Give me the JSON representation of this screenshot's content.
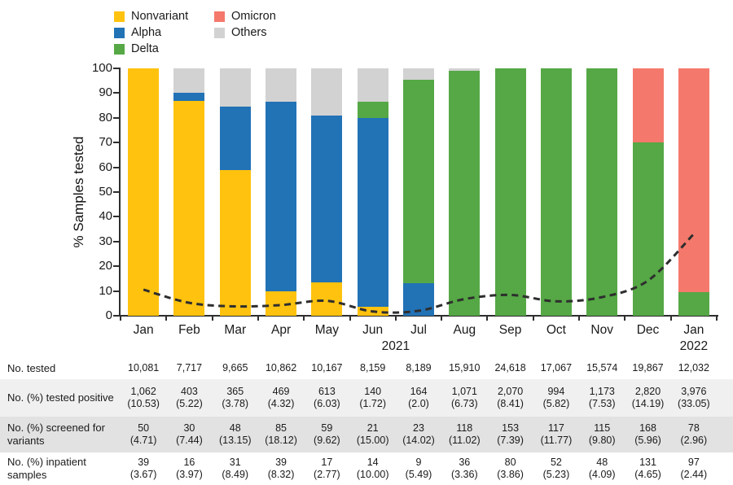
{
  "legend": {
    "items": [
      {
        "label": "Nonvariant",
        "color": "#FFC20E"
      },
      {
        "label": "Alpha",
        "color": "#2272B6"
      },
      {
        "label": "Delta",
        "color": "#55A845"
      },
      {
        "label": "Omicron",
        "color": "#F4796C"
      },
      {
        "label": "Others",
        "color": "#D2D2D2"
      }
    ]
  },
  "chart_data": {
    "type": "bar",
    "stacked": true,
    "title": "",
    "xlabel": "",
    "ylabel": "% Samples tested",
    "ylim": [
      0,
      100
    ],
    "yticks": [
      0,
      10,
      20,
      30,
      40,
      50,
      60,
      70,
      80,
      90,
      100
    ],
    "grid": false,
    "legend_position": "top-left",
    "categories": [
      "Jan",
      "Feb",
      "Mar",
      "Apr",
      "May",
      "Jun",
      "Jul",
      "Aug",
      "Sep",
      "Oct",
      "Nov",
      "Dec",
      "Jan"
    ],
    "year_labels": [
      {
        "text": "2021",
        "at": 5.5
      },
      {
        "text": "2022",
        "at": 12
      }
    ],
    "series": [
      {
        "name": "Nonvariant",
        "color": "#FFC20E",
        "values": [
          100,
          87,
          59,
          10,
          13.5,
          3.5,
          0,
          0,
          0,
          0,
          0,
          0,
          0
        ]
      },
      {
        "name": "Alpha",
        "color": "#2272B6",
        "values": [
          0,
          3,
          25.5,
          76.5,
          67.5,
          76.5,
          13,
          0,
          0,
          0,
          0,
          0,
          0
        ]
      },
      {
        "name": "Delta",
        "color": "#55A845",
        "values": [
          0,
          0,
          0,
          0,
          0,
          6.5,
          82.5,
          99,
          100,
          100,
          100,
          70,
          9.5
        ]
      },
      {
        "name": "Omicron",
        "color": "#F4796C",
        "values": [
          0,
          0,
          0,
          0,
          0,
          0,
          0,
          0,
          0,
          0,
          0,
          30,
          90.5
        ]
      },
      {
        "name": "Others",
        "color": "#D2D2D2",
        "values": [
          0,
          10,
          15.5,
          13.5,
          19,
          13.5,
          4.5,
          1,
          0,
          0,
          0,
          0,
          0
        ]
      }
    ],
    "line": {
      "name": "% tested positive",
      "style": "dashed",
      "color": "#2E2E2E",
      "values": [
        10.53,
        5.22,
        3.78,
        4.32,
        6.03,
        1.72,
        2.0,
        6.73,
        8.41,
        5.82,
        7.53,
        14.19,
        33.05
      ]
    }
  },
  "table": {
    "rows": [
      {
        "label": "No. tested",
        "cells": [
          [
            "10,081"
          ],
          [
            "7,717"
          ],
          [
            "9,665"
          ],
          [
            "10,862"
          ],
          [
            "10,167"
          ],
          [
            "8,159"
          ],
          [
            "8,189"
          ],
          [
            "15,910"
          ],
          [
            "24,618"
          ],
          [
            "17,067"
          ],
          [
            "15,574"
          ],
          [
            "19,867"
          ],
          [
            "12,032"
          ]
        ]
      },
      {
        "label": "No. (%) tested positive",
        "cells": [
          [
            "1,062",
            "(10.53)"
          ],
          [
            "403",
            "(5.22)"
          ],
          [
            "365",
            "(3.78)"
          ],
          [
            "469",
            "(4.32)"
          ],
          [
            "613",
            "(6.03)"
          ],
          [
            "140",
            "(1.72)"
          ],
          [
            "164",
            "(2.0)"
          ],
          [
            "1,071",
            "(6.73)"
          ],
          [
            "2,070",
            "(8.41)"
          ],
          [
            "994",
            "(5.82)"
          ],
          [
            "1,173",
            "(7.53)"
          ],
          [
            "2,820",
            "(14.19)"
          ],
          [
            "3,976",
            "(33.05)"
          ]
        ]
      },
      {
        "label": "No. (%) screened for variants",
        "cells": [
          [
            "50",
            "(4.71)"
          ],
          [
            "30",
            "(7.44)"
          ],
          [
            "48",
            "(13.15)"
          ],
          [
            "85",
            "(18.12)"
          ],
          [
            "59",
            "(9.62)"
          ],
          [
            "21",
            "(15.00)"
          ],
          [
            "23",
            "(14.02)"
          ],
          [
            "118",
            "(11.02)"
          ],
          [
            "153",
            "(7.39)"
          ],
          [
            "117",
            "(11.77)"
          ],
          [
            "115",
            "(9.80)"
          ],
          [
            "168",
            "(5.96)"
          ],
          [
            "78",
            "(2.96)"
          ]
        ]
      },
      {
        "label": "No. (%) inpatient samples",
        "cells": [
          [
            "39",
            "(3.67)"
          ],
          [
            "16",
            "(3.97)"
          ],
          [
            "31",
            "(8.49)"
          ],
          [
            "39",
            "(8.32)"
          ],
          [
            "17",
            "(2.77)"
          ],
          [
            "14",
            "(10.00)"
          ],
          [
            "9",
            "(5.49)"
          ],
          [
            "36",
            "(3.36)"
          ],
          [
            "80",
            "(3.86)"
          ],
          [
            "52",
            "(5.23)"
          ],
          [
            "48",
            "(4.09)"
          ],
          [
            "131",
            "(4.65)"
          ],
          [
            "97",
            "(2.44)"
          ]
        ]
      }
    ]
  }
}
